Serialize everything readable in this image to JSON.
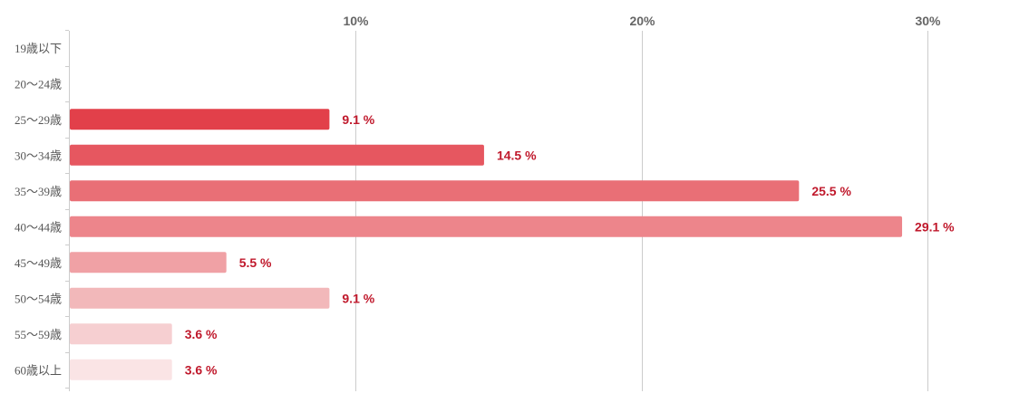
{
  "chart_data": {
    "type": "bar",
    "orientation": "horizontal",
    "categories": [
      "19歳以下",
      "20〜24歳",
      "25〜29歳",
      "30〜34歳",
      "35〜39歳",
      "40〜44歳",
      "45〜49歳",
      "50〜54歳",
      "55〜59歳",
      "60歳以上"
    ],
    "values": [
      0,
      0,
      9.1,
      14.5,
      25.5,
      29.1,
      5.5,
      9.1,
      3.6,
      3.6
    ],
    "value_labels": [
      "",
      "",
      "9.1 %",
      "14.5 %",
      "25.5 %",
      "29.1 %",
      "5.5 %",
      "9.1 %",
      "3.6 %",
      "3.6 %"
    ],
    "x_ticks": [
      {
        "value": 10,
        "label": "10%"
      },
      {
        "value": 20,
        "label": "20%"
      },
      {
        "value": 30,
        "label": "30%"
      }
    ],
    "xlim": [
      0,
      33.5
    ],
    "xlabel": "",
    "ylabel": "",
    "title": "",
    "grid": true,
    "x_axis_position": "top",
    "bar_colors": [
      "#e2404a",
      "#e2404a",
      "#e2404a",
      "#e65760",
      "#e96f76",
      "#ed858b",
      "#f0a1a5",
      "#f2b8ba",
      "#f6cfd1",
      "#fae4e5"
    ],
    "value_label_color": "#c0192c",
    "gridline_color": "#cccccc"
  }
}
